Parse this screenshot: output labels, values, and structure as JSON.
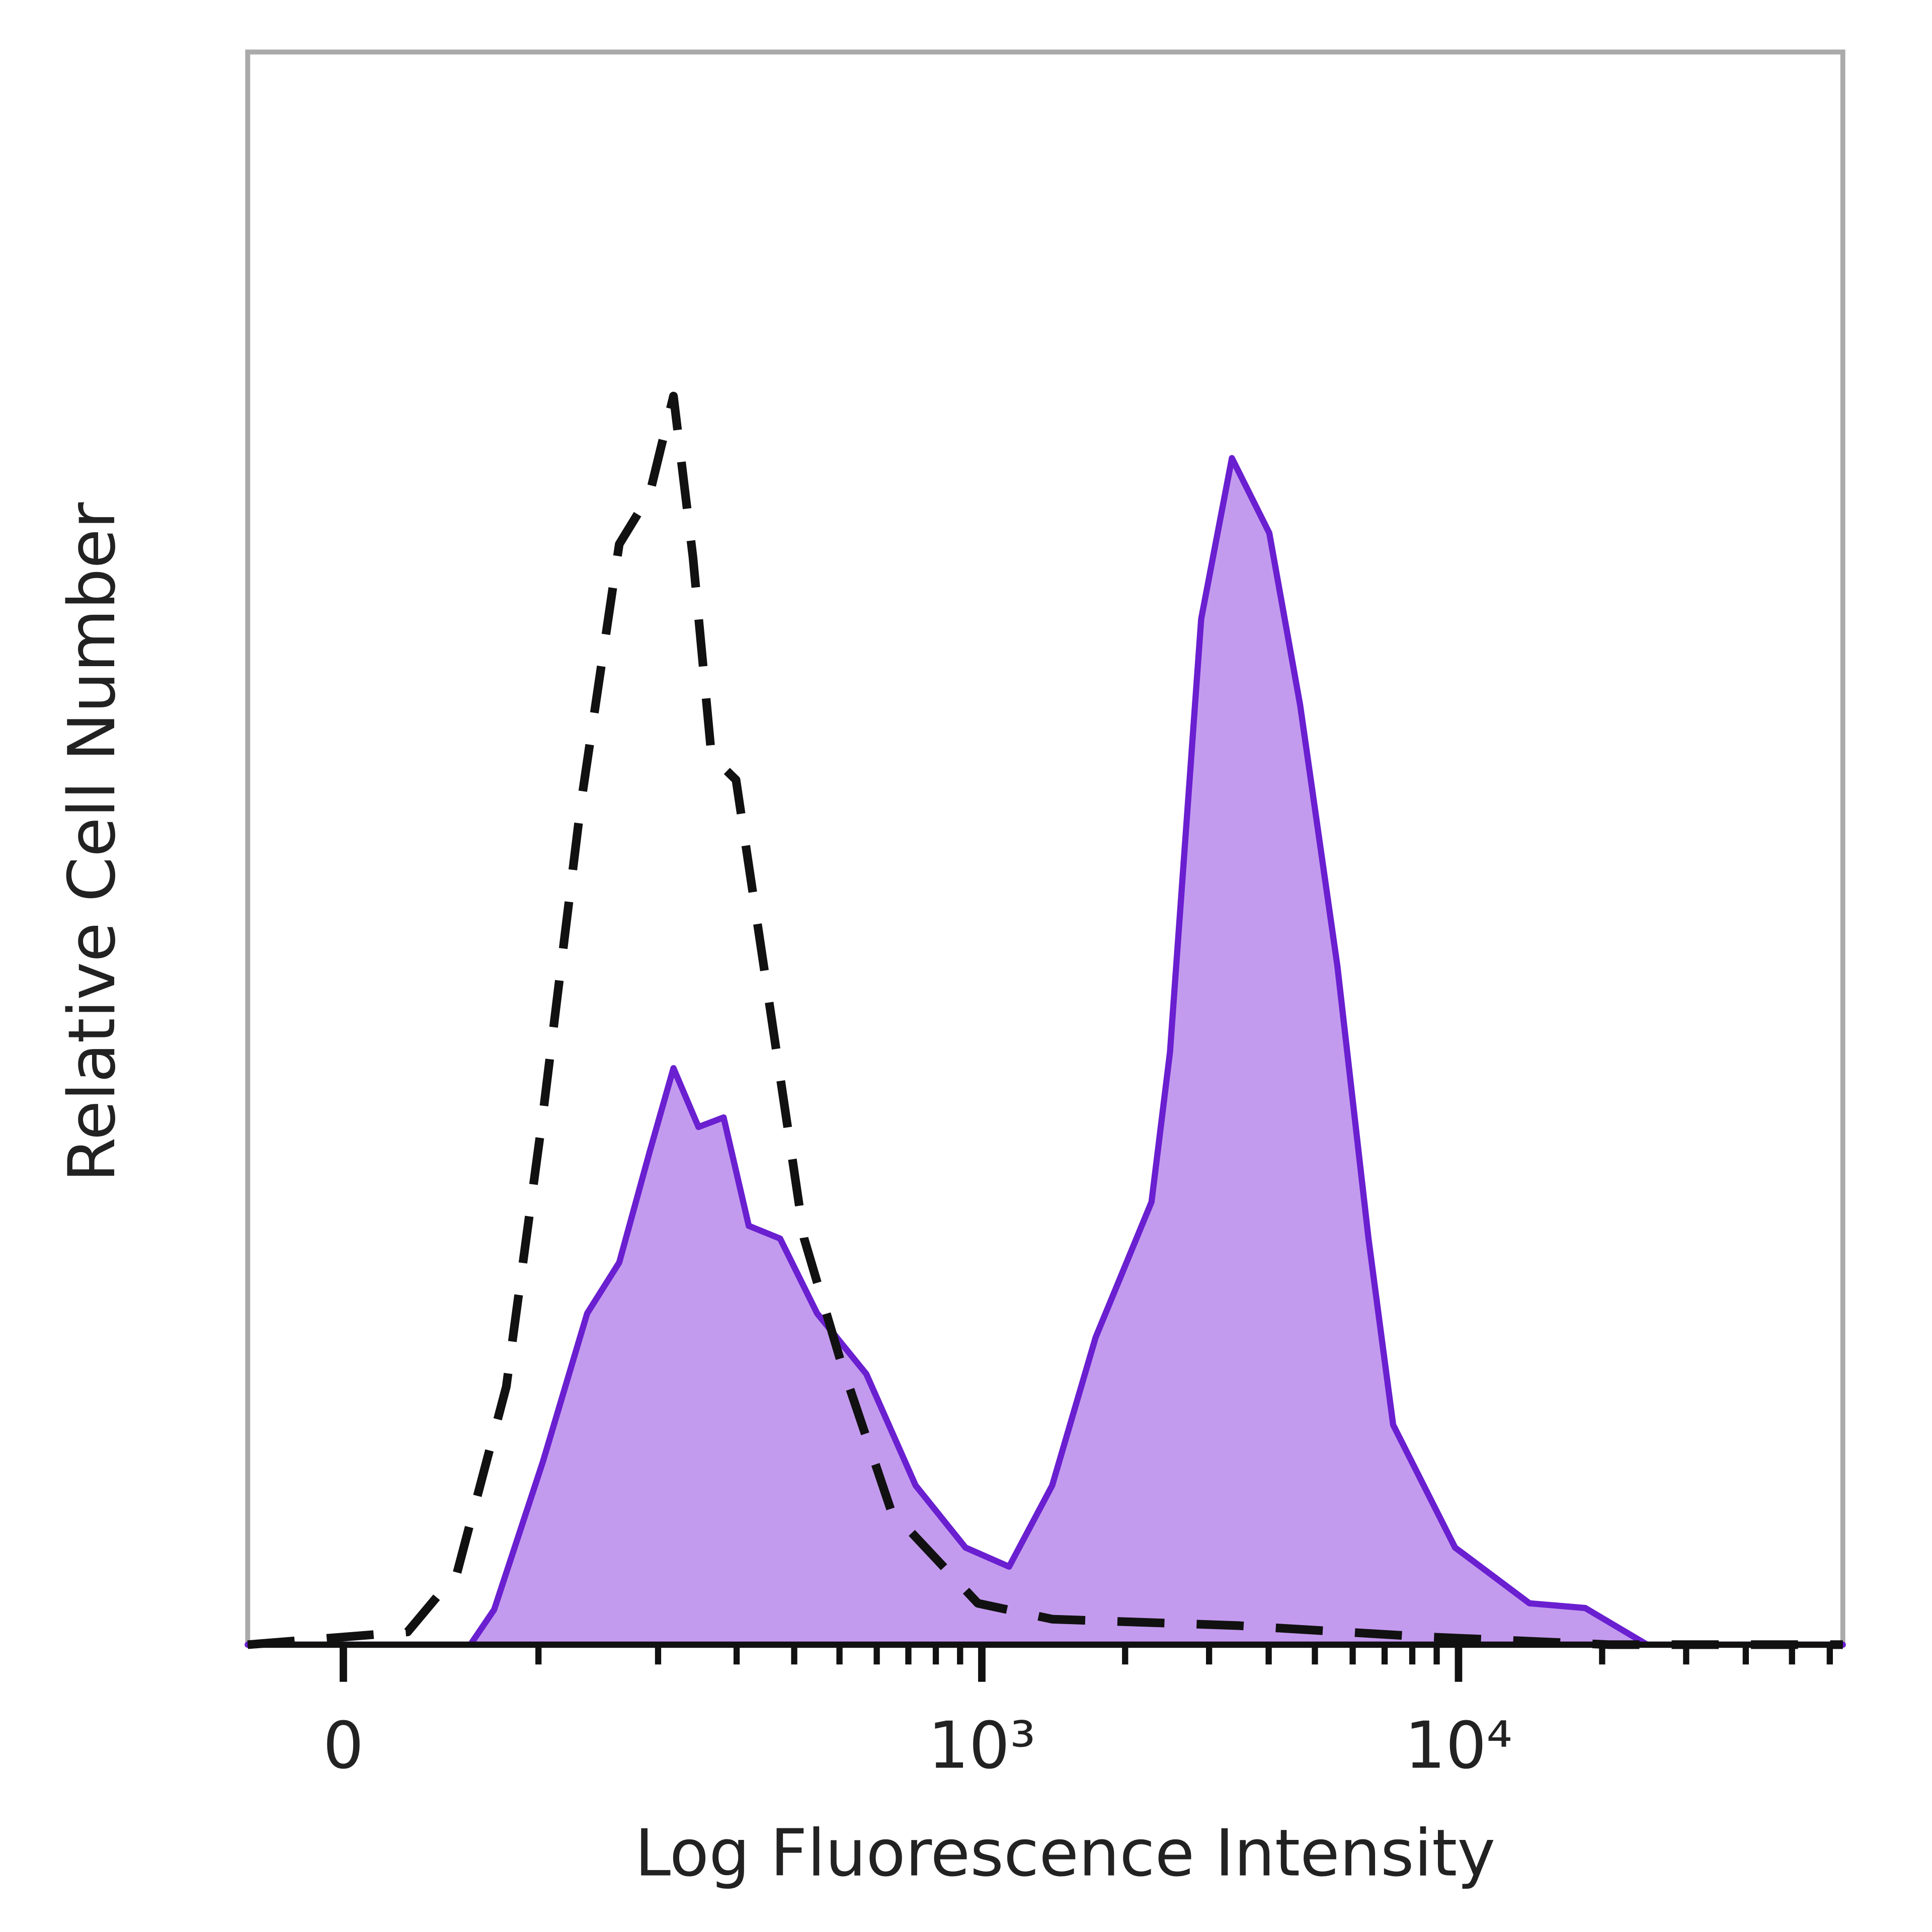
{
  "chart_data": {
    "type": "histogram-overlay",
    "x_label": "Log Fluorescence Intensity",
    "y_label": "Relative Cell Number",
    "xscale": "arcsinh",
    "xscale_cofactor": 92,
    "xlim": [
      -44,
      63900
    ],
    "ylim": [
      0,
      100
    ],
    "xticks": [
      0,
      {
        "value": 1000,
        "label": "10³"
      },
      {
        "value": 10000,
        "label": "10⁴"
      }
    ],
    "xminorticks": [
      100,
      200,
      300,
      400,
      500,
      600,
      700,
      800,
      900,
      2000,
      3000,
      4000,
      5000,
      6000,
      7000,
      8000,
      9000,
      20000,
      30000,
      40000,
      50000,
      60000
    ],
    "series": [
      {
        "color": "#6a1fd0",
        "fill": "#c39bee",
        "style": "solid",
        "x": [
          -44,
          60,
          73,
          103,
          135,
          162,
          191,
          217,
          247,
          281,
          319,
          373,
          448,
          570,
          725,
          924,
          1141,
          1406,
          1735,
          2272,
          2484,
          2888,
          3350,
          4011,
          4655,
          5575,
          6477,
          7296,
          9835,
          14085,
          18437,
          24850,
          63900
        ],
        "values": [
          0,
          0,
          2.2,
          11.5,
          20.8,
          24.0,
          30.9,
          36.2,
          32.5,
          33.1,
          26.3,
          25.5,
          20.8,
          17.0,
          10.0,
          6.1,
          4.9,
          10.0,
          19.3,
          27.8,
          37.2,
          64.4,
          74.5,
          69.8,
          59.0,
          42.6,
          25.5,
          13.8,
          6.1,
          2.6,
          2.3,
          0,
          0
        ]
      },
      {
        "color": "#111111",
        "style": "dashed",
        "x": [
          -44,
          29,
          53,
          80,
          103,
          130,
          162,
          191,
          217,
          240,
          264,
          299,
          350,
          420,
          504,
          644,
          981,
          1406,
          3450,
          8464,
          20764,
          63900
        ],
        "values": [
          0,
          0.8,
          4.5,
          16.2,
          33.3,
          52.7,
          69.1,
          72.2,
          78.4,
          68.3,
          55.8,
          54.3,
          41.1,
          25.5,
          17.7,
          8.4,
          2.6,
          1.6,
          1.2,
          0.5,
          0,
          0
        ]
      }
    ]
  }
}
